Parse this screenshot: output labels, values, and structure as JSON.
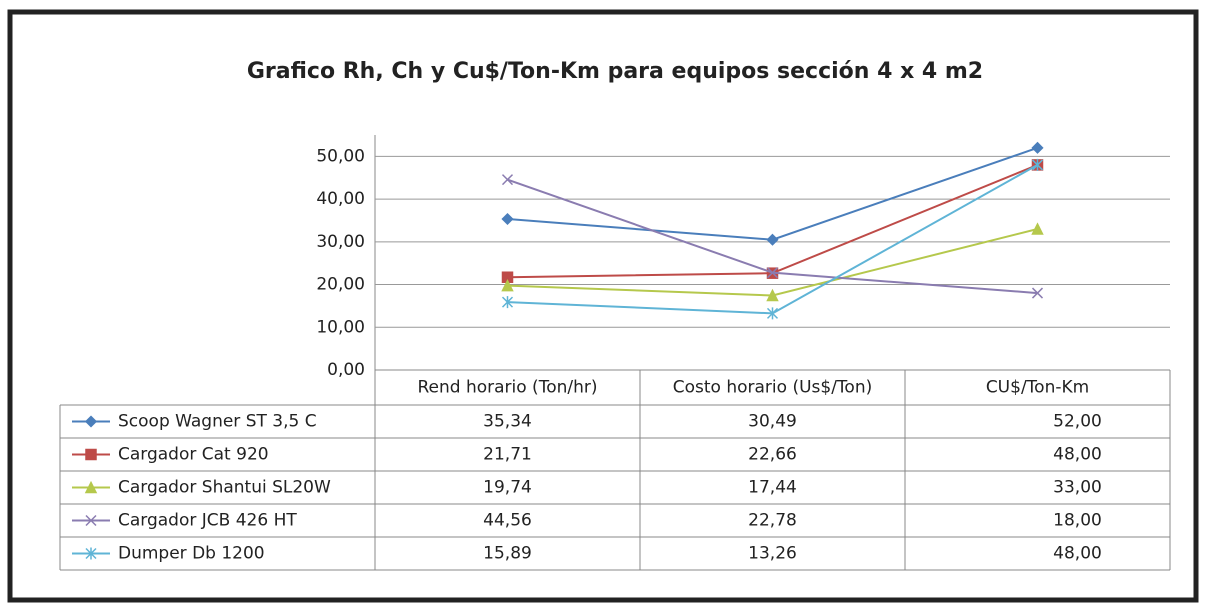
{
  "chart_data": {
    "type": "line",
    "title": "Grafico Rh, Ch y Cu$/Ton-Km para equipos sección 4 x 4 m2",
    "categories": [
      "Rend horario (Ton/hr)",
      "Costo horario (Us$/Ton)",
      "CU$/Ton-Km"
    ],
    "ylim": [
      0,
      55
    ],
    "yticks": [
      {
        "value": 0,
        "label": "0,00"
      },
      {
        "value": 10,
        "label": "10,00"
      },
      {
        "value": 20,
        "label": "20,00"
      },
      {
        "value": 30,
        "label": "30,00"
      },
      {
        "value": 40,
        "label": "40,00"
      },
      {
        "value": 50,
        "label": "50,00"
      }
    ],
    "grid": true,
    "data_table": true,
    "series": [
      {
        "name": "Scoop Wagner ST 3,5 C",
        "color": "#4a7ebb",
        "marker": "diamond",
        "values": [
          35.34,
          30.49,
          52
        ],
        "value_labels": [
          "35,34",
          "30,49",
          "52,00"
        ]
      },
      {
        "name": "Cargador Cat 920",
        "color": "#be4b48",
        "marker": "square",
        "values": [
          21.71,
          22.66,
          48
        ],
        "value_labels": [
          "21,71",
          "22,66",
          "48,00"
        ]
      },
      {
        "name": "Cargador Shantui SL20W",
        "color": "#b5c84c",
        "marker": "triangle",
        "values": [
          19.74,
          17.44,
          33
        ],
        "value_labels": [
          "19,74",
          "17,44",
          "33,00"
        ]
      },
      {
        "name": "Cargador JCB 426 HT",
        "color": "#8a7cb0",
        "marker": "x",
        "values": [
          44.56,
          22.78,
          18
        ],
        "value_labels": [
          "44,56",
          "22,78",
          "18,00"
        ]
      },
      {
        "name": "Dumper Db 1200",
        "color": "#5fb4d6",
        "marker": "star",
        "values": [
          15.89,
          13.26,
          48
        ],
        "value_labels": [
          "15,89",
          "13,26",
          "48,00"
        ]
      }
    ]
  }
}
